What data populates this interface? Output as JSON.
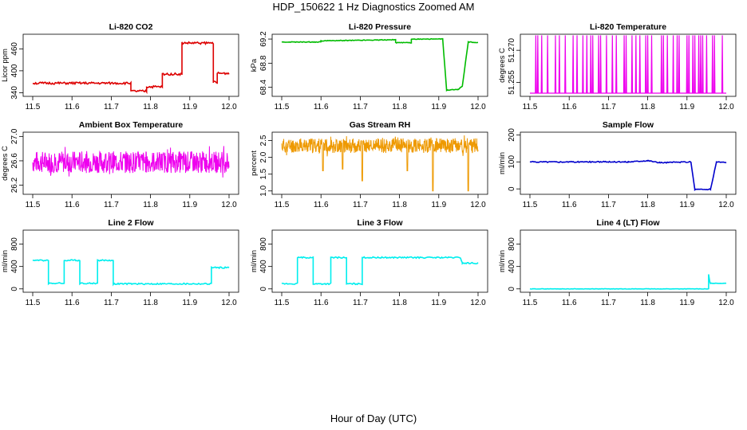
{
  "page": {
    "title": "HDP_150622  1 Hz Diagnostics Zoomed AM",
    "x_axis_title": "Hour of Day (UTC)"
  },
  "chart_data": [
    {
      "id": "p1",
      "type": "line",
      "title": "Li-820 CO2",
      "ylabel": "Licor ppm",
      "color": "#dd0000",
      "series_style": "step",
      "noise": 3,
      "xlim": [
        11.5,
        12.0
      ],
      "ylim": [
        330,
        500
      ],
      "yticks": [
        340,
        400,
        460
      ],
      "ytick_labels": [
        "340",
        "400",
        "460"
      ],
      "xticks": [
        11.5,
        11.6,
        11.7,
        11.8,
        11.9,
        12.0
      ],
      "xtick_labels": [
        "11.5",
        "11.6",
        "11.7",
        "11.8",
        "11.9",
        "12.0"
      ],
      "x": [
        11.5,
        11.75,
        11.75,
        11.79,
        11.79,
        11.83,
        11.83,
        11.88,
        11.88,
        11.96,
        11.96,
        11.97,
        11.97,
        12.0
      ],
      "y": [
        366,
        366,
        344,
        344,
        356,
        356,
        391,
        391,
        476,
        476,
        370,
        366,
        393,
        393
      ]
    },
    {
      "id": "p2",
      "type": "line",
      "title": "Li-820 Pressure",
      "ylabel": "kPa",
      "color": "#00bb00",
      "series_style": "step",
      "noise": 0.006,
      "xlim": [
        11.5,
        12.0
      ],
      "ylim": [
        68.25,
        69.28
      ],
      "yticks": [
        68.4,
        68.8,
        69.2
      ],
      "ytick_labels": [
        "68.4",
        "68.8",
        "69.2"
      ],
      "xticks": [
        11.5,
        11.6,
        11.7,
        11.8,
        11.9,
        12.0
      ],
      "xtick_labels": [
        "11.5",
        "11.6",
        "11.7",
        "11.8",
        "11.9",
        "12.0"
      ],
      "x": [
        11.5,
        11.6,
        11.6,
        11.79,
        11.79,
        11.83,
        11.83,
        11.91,
        11.92,
        11.95,
        11.96,
        11.975,
        12.0
      ],
      "y": [
        69.15,
        69.15,
        69.17,
        69.19,
        69.14,
        69.14,
        69.2,
        69.2,
        68.35,
        68.37,
        68.42,
        69.15,
        69.14
      ]
    },
    {
      "id": "p3",
      "type": "line",
      "title": "Li-820 Temperature",
      "ylabel": "degrees C",
      "color": "#ee00ee",
      "series_style": "spikes",
      "xlim": [
        11.5,
        12.0
      ],
      "ylim": [
        51.2485,
        51.2775
      ],
      "yticks": [
        51.255,
        51.27
      ],
      "ytick_labels": [
        "51.255",
        "51.270"
      ],
      "baseline": 51.25,
      "spike_top": 51.277,
      "x": [
        11.515,
        11.52,
        11.53,
        11.545,
        11.565,
        11.575,
        11.59,
        11.61,
        11.62,
        11.635,
        11.645,
        11.655,
        11.66,
        11.675,
        11.68,
        11.695,
        11.71,
        11.72,
        11.74,
        11.745,
        11.76,
        11.77,
        11.78,
        11.795,
        11.8,
        11.81,
        11.835,
        11.84,
        11.85,
        11.865,
        11.875,
        11.88,
        11.9,
        11.905,
        11.915,
        11.92,
        11.93,
        11.935,
        11.94,
        11.95,
        11.965,
        11.97,
        11.99
      ],
      "xticks": [
        11.5,
        11.6,
        11.7,
        11.8,
        11.9,
        12.0
      ],
      "xtick_labels": [
        "11.5",
        "11.6",
        "11.7",
        "11.8",
        "11.9",
        "12.0"
      ]
    },
    {
      "id": "p4",
      "type": "line",
      "title": "Ambient Box Temperature",
      "ylabel": "degrees C",
      "color": "#ee00ee",
      "series_style": "noisy",
      "xlim": [
        11.5,
        12.0
      ],
      "ylim": [
        26.05,
        27.07
      ],
      "yticks": [
        26.2,
        26.6,
        27.0
      ],
      "ytick_labels": [
        "26.2",
        "26.6",
        "27.0"
      ],
      "mean": 26.58,
      "spread": 0.18,
      "seed": 7,
      "xticks": [
        11.5,
        11.6,
        11.7,
        11.8,
        11.9,
        12.0
      ],
      "xtick_labels": [
        "11.5",
        "11.6",
        "11.7",
        "11.8",
        "11.9",
        "12.0"
      ]
    },
    {
      "id": "p5",
      "type": "line",
      "title": "Gas Stream RH",
      "ylabel": "percent",
      "color": "#ee9900",
      "series_style": "noisy",
      "xlim": [
        11.5,
        12.0
      ],
      "ylim": [
        0.9,
        2.75
      ],
      "yticks": [
        1.0,
        1.5,
        2.0,
        2.5
      ],
      "ytick_labels": [
        "1.0",
        "1.5",
        "2.0",
        "2.5"
      ],
      "mean": 2.35,
      "spread": 0.22,
      "seed": 11,
      "dips": [
        [
          11.605,
          1.6
        ],
        [
          11.655,
          1.65
        ],
        [
          11.705,
          1.3
        ],
        [
          11.82,
          1.6
        ],
        [
          11.885,
          1.0
        ],
        [
          11.975,
          1.0
        ]
      ],
      "xticks": [
        11.5,
        11.6,
        11.7,
        11.8,
        11.9,
        12.0
      ],
      "xtick_labels": [
        "11.5",
        "11.6",
        "11.7",
        "11.8",
        "11.9",
        "12.0"
      ]
    },
    {
      "id": "p6",
      "type": "line",
      "title": "Sample Flow",
      "ylabel": "ml/min",
      "color": "#0000cc",
      "series_style": "step",
      "noise": 2,
      "xlim": [
        11.5,
        12.0
      ],
      "ylim": [
        -20,
        210
      ],
      "yticks": [
        0,
        100,
        200
      ],
      "ytick_labels": [
        "0",
        "100",
        "200"
      ],
      "x": [
        11.5,
        11.75,
        11.8,
        11.83,
        11.91,
        11.92,
        11.96,
        11.975,
        12.0
      ],
      "y": [
        100,
        100,
        105,
        97,
        100,
        -2,
        -2,
        100,
        98
      ],
      "xticks": [
        11.5,
        11.6,
        11.7,
        11.8,
        11.9,
        12.0
      ],
      "xtick_labels": [
        "11.5",
        "11.6",
        "11.7",
        "11.8",
        "11.9",
        "12.0"
      ]
    },
    {
      "id": "p7",
      "type": "line",
      "title": "Line 2 Flow",
      "ylabel": "ml/min",
      "color": "#00eeee",
      "series_style": "step",
      "noise": 12,
      "xlim": [
        11.5,
        12.0
      ],
      "ylim": [
        -60,
        1050
      ],
      "yticks": [
        0,
        400,
        800
      ],
      "ytick_labels": [
        "0",
        "400",
        "800"
      ],
      "x": [
        11.5,
        11.54,
        11.54,
        11.58,
        11.58,
        11.62,
        11.62,
        11.665,
        11.665,
        11.705,
        11.705,
        11.955,
        11.955,
        12.0
      ],
      "y": [
        510,
        510,
        100,
        100,
        510,
        510,
        100,
        100,
        510,
        510,
        90,
        90,
        380,
        380
      ],
      "xticks": [
        11.5,
        11.6,
        11.7,
        11.8,
        11.9,
        12.0
      ],
      "xtick_labels": [
        "11.5",
        "11.6",
        "11.7",
        "11.8",
        "11.9",
        "12.0"
      ]
    },
    {
      "id": "p8",
      "type": "line",
      "title": "Line 3 Flow",
      "ylabel": "ml/min",
      "color": "#00eeee",
      "series_style": "step",
      "noise": 12,
      "xlim": [
        11.5,
        12.0
      ],
      "ylim": [
        -60,
        1050
      ],
      "yticks": [
        0,
        400,
        800
      ],
      "ytick_labels": [
        "0",
        "400",
        "800"
      ],
      "x": [
        11.5,
        11.54,
        11.54,
        11.58,
        11.58,
        11.625,
        11.625,
        11.665,
        11.665,
        11.705,
        11.705,
        11.955,
        11.96,
        12.0
      ],
      "y": [
        90,
        90,
        560,
        560,
        90,
        90,
        560,
        560,
        90,
        90,
        560,
        560,
        460,
        460
      ],
      "xticks": [
        11.5,
        11.6,
        11.7,
        11.8,
        11.9,
        12.0
      ],
      "xtick_labels": [
        "11.5",
        "11.6",
        "11.7",
        "11.8",
        "11.9",
        "12.0"
      ]
    },
    {
      "id": "p9",
      "type": "line",
      "title": "Line 4 (LT) Flow",
      "ylabel": "ml/min",
      "color": "#00eeee",
      "series_style": "step",
      "noise": 3,
      "xlim": [
        11.5,
        12.0
      ],
      "ylim": [
        -60,
        1050
      ],
      "yticks": [
        0,
        400,
        800
      ],
      "ytick_labels": [
        "0",
        "400",
        "800"
      ],
      "x": [
        11.5,
        11.955,
        11.955,
        11.958,
        11.96,
        12.0
      ],
      "y": [
        0,
        0,
        260,
        130,
        100,
        100
      ],
      "xticks": [
        11.5,
        11.6,
        11.7,
        11.8,
        11.9,
        12.0
      ],
      "xtick_labels": [
        "11.5",
        "11.6",
        "11.7",
        "11.8",
        "11.9",
        "12.0"
      ]
    }
  ]
}
